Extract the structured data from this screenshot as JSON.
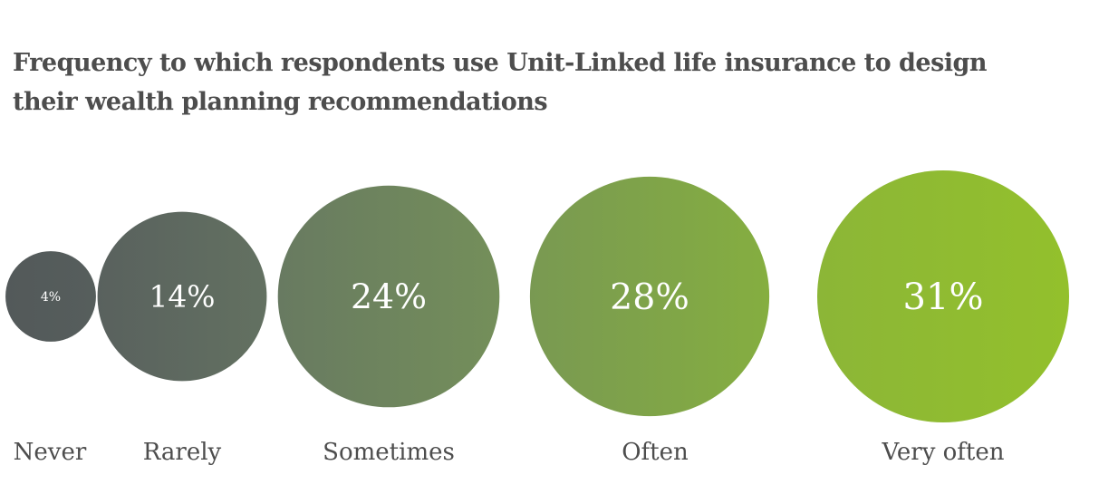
{
  "chart_data": {
    "type": "bubble",
    "title": "Frequency to which respondents use Unit-Linked life insurance to design their wealth planning recommendations",
    "categories": [
      "Never",
      "Rarely",
      "Sometimes",
      "Often",
      "Very often"
    ],
    "values": [
      4,
      14,
      24,
      28,
      31
    ],
    "value_labels": [
      "4%",
      "14%",
      "24%",
      "28%",
      "31%"
    ],
    "unit": "%",
    "colors": [
      "#53595a",
      "#5c6660",
      "#6f8462",
      "#7ea44a",
      "#93c02c"
    ],
    "label_color": "#ffffff",
    "category_label_color": "#4d4d4d",
    "legend": "none",
    "grid": false
  }
}
